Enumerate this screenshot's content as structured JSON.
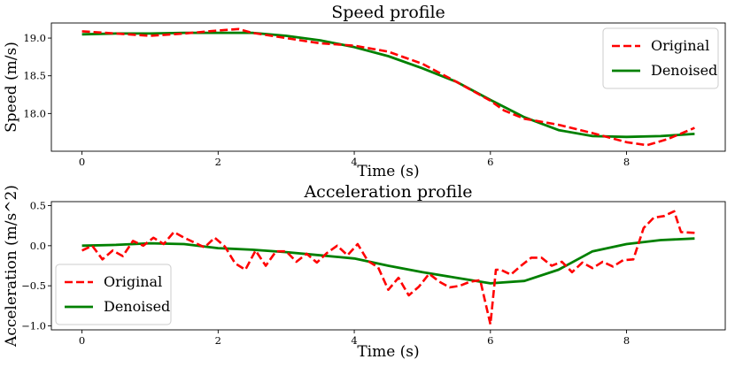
{
  "chart_data": [
    {
      "type": "line",
      "title": "Speed profile",
      "xlabel": "Time (s)",
      "ylabel": "Speed (m/s)",
      "xlim": [
        -0.45,
        9.45
      ],
      "ylim": [
        17.5,
        19.2
      ],
      "xticks": [
        0,
        2,
        4,
        6,
        8
      ],
      "xtick_labels": [
        "0",
        "2",
        "4",
        "6",
        "8"
      ],
      "yticks": [
        18.0,
        18.5,
        19.0
      ],
      "ytick_labels": [
        "18.0",
        "18.5",
        "19.0"
      ],
      "legend_position": "top-right",
      "series": [
        {
          "name": "Original",
          "color": "#ff0000",
          "style": "dashed",
          "x": [
            0,
            0.5,
            1.0,
            1.5,
            2.0,
            2.3,
            2.5,
            3.0,
            3.5,
            4.0,
            4.5,
            5.0,
            5.5,
            6.0,
            6.2,
            6.5,
            7.0,
            7.5,
            8.0,
            8.3,
            8.6,
            9.0
          ],
          "y": [
            19.09,
            19.06,
            19.03,
            19.06,
            19.1,
            19.12,
            19.07,
            19.0,
            18.93,
            18.9,
            18.82,
            18.66,
            18.42,
            18.17,
            18.04,
            17.93,
            17.85,
            17.74,
            17.62,
            17.58,
            17.66,
            17.81
          ]
        },
        {
          "name": "Denoised",
          "color": "#008000",
          "style": "solid",
          "x": [
            0,
            0.5,
            1.0,
            1.5,
            2.0,
            2.5,
            3.0,
            3.5,
            4.0,
            4.5,
            5.0,
            5.5,
            6.0,
            6.5,
            7.0,
            7.5,
            8.0,
            8.5,
            9.0
          ],
          "y": [
            19.05,
            19.06,
            19.06,
            19.07,
            19.07,
            19.07,
            19.03,
            18.97,
            18.88,
            18.76,
            18.6,
            18.42,
            18.18,
            17.95,
            17.78,
            17.7,
            17.69,
            17.7,
            17.73
          ]
        }
      ]
    },
    {
      "type": "line",
      "title": "Acceleration profile",
      "xlabel": "Time (s)",
      "ylabel": "Acceleration (m/s^2)",
      "xlim": [
        -0.45,
        9.45
      ],
      "ylim": [
        -1.05,
        0.55
      ],
      "xticks": [
        0,
        2,
        4,
        6,
        8
      ],
      "xtick_labels": [
        "0",
        "2",
        "4",
        "6",
        "8"
      ],
      "yticks": [
        -1.0,
        -0.5,
        0.0,
        0.5
      ],
      "ytick_labels": [
        "−1.0",
        "−0.5",
        "0.0",
        "0.5"
      ],
      "legend_position": "bottom-left",
      "series": [
        {
          "name": "Original",
          "color": "#ff0000",
          "style": "dashed",
          "x": [
            0,
            0.15,
            0.3,
            0.45,
            0.6,
            0.75,
            0.9,
            1.05,
            1.2,
            1.35,
            1.5,
            1.65,
            1.8,
            1.95,
            2.1,
            2.25,
            2.4,
            2.55,
            2.7,
            2.85,
            3.0,
            3.15,
            3.3,
            3.45,
            3.6,
            3.75,
            3.9,
            4.05,
            4.2,
            4.35,
            4.5,
            4.65,
            4.8,
            4.95,
            5.1,
            5.25,
            5.4,
            5.55,
            5.7,
            5.85,
            6.0,
            6.08,
            6.15,
            6.3,
            6.45,
            6.6,
            6.75,
            6.9,
            7.05,
            7.2,
            7.35,
            7.5,
            7.65,
            7.8,
            7.95,
            8.1,
            8.25,
            8.4,
            8.55,
            8.7,
            8.8,
            9.0
          ],
          "y": [
            -0.06,
            0.0,
            -0.17,
            -0.06,
            -0.13,
            0.06,
            0.0,
            0.1,
            0.02,
            0.17,
            0.1,
            0.04,
            -0.02,
            0.1,
            -0.01,
            -0.22,
            -0.3,
            -0.06,
            -0.25,
            -0.07,
            -0.07,
            -0.2,
            -0.1,
            -0.21,
            -0.09,
            0.0,
            -0.12,
            0.02,
            -0.19,
            -0.27,
            -0.55,
            -0.4,
            -0.62,
            -0.51,
            -0.35,
            -0.45,
            -0.52,
            -0.5,
            -0.45,
            -0.43,
            -0.98,
            -0.3,
            -0.3,
            -0.36,
            -0.25,
            -0.15,
            -0.15,
            -0.25,
            -0.2,
            -0.33,
            -0.21,
            -0.28,
            -0.2,
            -0.26,
            -0.18,
            -0.17,
            0.22,
            0.35,
            0.37,
            0.43,
            0.17,
            0.16
          ]
        },
        {
          "name": "Denoised",
          "color": "#008000",
          "style": "solid",
          "x": [
            0,
            0.5,
            1.0,
            1.5,
            2.0,
            2.5,
            3.0,
            3.5,
            4.0,
            4.5,
            5.0,
            5.5,
            6.0,
            6.5,
            7.0,
            7.5,
            8.0,
            8.5,
            9.0
          ],
          "y": [
            0.0,
            0.01,
            0.03,
            0.02,
            -0.03,
            -0.05,
            -0.08,
            -0.12,
            -0.16,
            -0.25,
            -0.33,
            -0.4,
            -0.47,
            -0.44,
            -0.3,
            -0.07,
            0.02,
            0.07,
            0.09
          ]
        }
      ]
    }
  ]
}
